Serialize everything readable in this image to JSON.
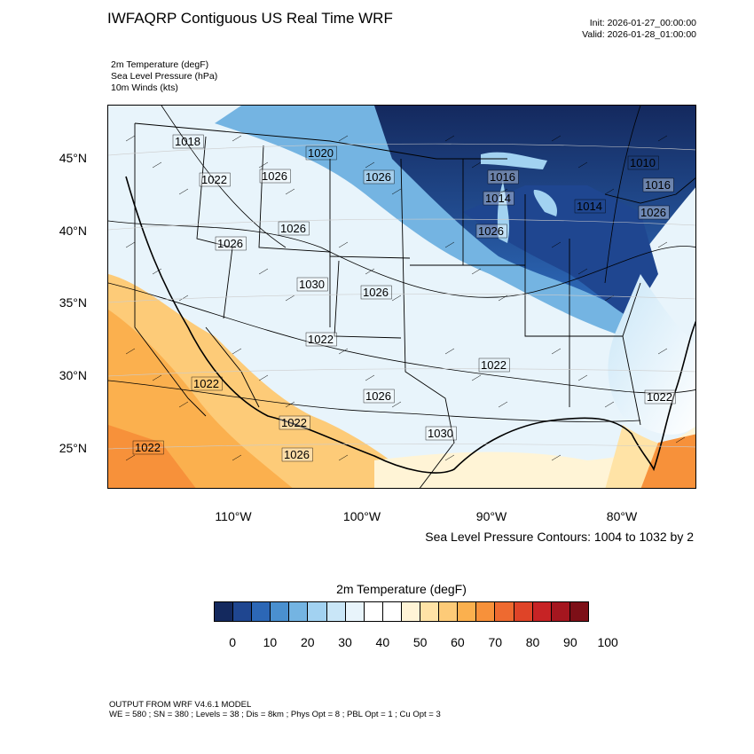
{
  "header": {
    "title": "IWFAQRP Contiguous US Real Time WRF",
    "init": "Init: 2026-01-27_00:00:00",
    "valid": "Valid: 2026-01-28_01:00:00"
  },
  "fields": {
    "line1": "2m Temperature   (degF)",
    "line2": "Sea Level Pressure   (hPa)",
    "line3": "10m Winds   (kts)"
  },
  "axes": {
    "lat_labels": [
      "45°N",
      "40°N",
      "35°N",
      "30°N",
      "25°N"
    ],
    "lon_labels": [
      "110°W",
      "100°W",
      "90°W",
      "80°W"
    ]
  },
  "slp_labels": [
    "1018",
    "1022",
    "1026",
    "1020",
    "1026",
    "1016",
    "1010",
    "1014",
    "1016",
    "1014",
    "1026",
    "1026",
    "1026",
    "1026",
    "1030",
    "1026",
    "1022",
    "1026",
    "1022",
    "1022",
    "1030",
    "1022",
    "1022",
    "1026",
    "1022"
  ],
  "slp_note": "Sea Level Pressure Contours: 1004 to 1032 by 2",
  "colorbar": {
    "title": "2m Temperature  (degF)",
    "labels": [
      "0",
      "10",
      "20",
      "30",
      "40",
      "50",
      "60",
      "70",
      "80",
      "90",
      "100"
    ],
    "colors": [
      "#14295e",
      "#1f4690",
      "#2c67b6",
      "#4a90cf",
      "#74b4e2",
      "#a2d2f1",
      "#c9e6f7",
      "#e8f4fb",
      "#ffffff",
      "#ffffff",
      "#fff4d6",
      "#ffe3a6",
      "#fdcb78",
      "#fbb04e",
      "#f7913a",
      "#ee6a30",
      "#df4428",
      "#c72325",
      "#a5161f",
      "#7d0f17"
    ]
  },
  "footer": {
    "line1": "OUTPUT FROM WRF V4.6.1 MODEL",
    "line2": "WE = 580 ; SN = 380 ; Levels = 38 ; Dis = 8km ; Phys Opt = 8 ; PBL Opt = 1 ; Cu Opt = 3"
  }
}
